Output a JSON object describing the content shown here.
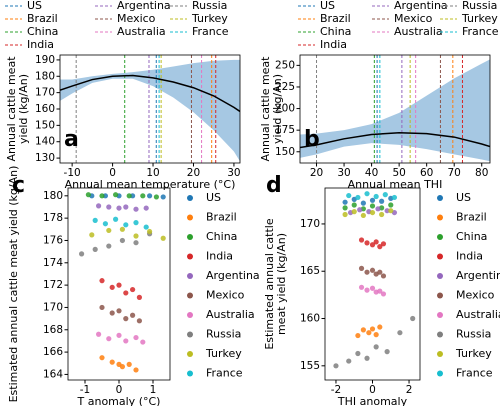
{
  "chart_data": [
    {
      "type": "line",
      "panel_label": "a",
      "xlabel": "Annual mean temperature (°C)",
      "ylabel": [
        "Annual cattle meat",
        "yield (kg/An)"
      ],
      "xlim": [
        -13,
        31.5
      ],
      "ylim": [
        127,
        193
      ],
      "xticks": [
        -10,
        0,
        10,
        20,
        30
      ],
      "yticks": [
        130,
        140,
        150,
        160,
        170,
        180,
        190
      ],
      "band_color": "#a6c8e3",
      "line_color": "#000000",
      "curve": {
        "x": [
          -13,
          -10,
          -5,
          0,
          5,
          10,
          15,
          20,
          25,
          30,
          31.5
        ],
        "values": [
          171.5,
          174,
          178,
          180,
          180.5,
          179,
          176.5,
          173,
          168,
          161,
          158.5
        ],
        "upper": [
          178,
          178,
          180,
          181.5,
          182.5,
          184,
          186,
          188,
          189.5,
          190,
          190
        ],
        "lower": [
          165,
          169.5,
          176,
          178.5,
          178.5,
          174,
          167,
          158,
          147,
          134,
          128
        ]
      },
      "markers": {
        "names": [
          "US",
          "Brazil",
          "China",
          "India",
          "Argentina",
          "Mexico",
          "Australia",
          "Russia",
          "Turkey",
          "France"
        ],
        "colors": [
          "#1f77b4",
          "#ff7f0e",
          "#2ca02c",
          "#d62728",
          "#9467bd",
          "#8c564b",
          "#e377c2",
          "#7f7f7f",
          "#bcbd22",
          "#17becf"
        ],
        "values": [
          10.8,
          24.5,
          3,
          25.5,
          9,
          19.5,
          22,
          -9,
          12,
          11.5
        ]
      }
    },
    {
      "type": "line",
      "panel_label": "b",
      "xlabel": "Annual mean THI",
      "ylabel": [
        "Annual cattle meat",
        "yield (kg/An)"
      ],
      "xlim": [
        14,
        83
      ],
      "ylim": [
        137,
        262
      ],
      "xticks": [
        20,
        30,
        40,
        50,
        60,
        70,
        80
      ],
      "yticks": [
        150,
        175,
        200,
        225,
        250
      ],
      "band_color": "#a6c8e3",
      "line_color": "#000000",
      "curve": {
        "x": [
          14,
          20,
          30,
          40,
          50,
          60,
          70,
          80,
          83
        ],
        "values": [
          155,
          158,
          165,
          170,
          172,
          171,
          167,
          159,
          156
        ],
        "upper": [
          170,
          171,
          175,
          182,
          195,
          215,
          235,
          252,
          257
        ],
        "lower": [
          143,
          147,
          156,
          160,
          158,
          153,
          147,
          141,
          139
        ]
      },
      "markers": {
        "names": [
          "US",
          "Brazil",
          "China",
          "India",
          "Argentina",
          "Mexico",
          "Australia",
          "Russia",
          "Turkey",
          "France"
        ],
        "colors": [
          "#1f77b4",
          "#ff7f0e",
          "#2ca02c",
          "#d62728",
          "#9467bd",
          "#8c564b",
          "#e377c2",
          "#7f7f7f",
          "#bcbd22",
          "#17becf"
        ],
        "values": [
          42,
          69.5,
          41,
          73,
          51,
          65,
          56,
          20,
          54,
          43
        ]
      }
    },
    {
      "type": "scatter",
      "panel_label": "c",
      "xlabel": "T anomaly (°C)",
      "ylabel": [
        "Estimated annual cattle meat yield (kg/An)"
      ],
      "xlim": [
        -1.5,
        1.5
      ],
      "ylim": [
        163.5,
        180.7
      ],
      "xticks": [
        -1,
        0,
        1
      ],
      "yticks": [
        164,
        166,
        168,
        170,
        172,
        174,
        176,
        178,
        180
      ],
      "series": [
        {
          "name": "US",
          "color": "#1f77b4",
          "x": [
            -0.8,
            -0.4,
            0,
            0.4,
            0.9,
            1.3
          ],
          "values": [
            180,
            180,
            180,
            180,
            180,
            179.9
          ]
        },
        {
          "name": "Brazil",
          "color": "#ff7f0e",
          "x": [
            -0.5,
            -0.2,
            0,
            0.1,
            0.3,
            0.5
          ],
          "values": [
            165.5,
            165.1,
            164.9,
            164.7,
            164.9,
            164.4
          ]
        },
        {
          "name": "China",
          "color": "#2ca02c",
          "x": [
            -0.9,
            -0.5,
            -0.1,
            0.3,
            0.7,
            1.1
          ],
          "values": [
            180.1,
            180,
            180.1,
            180,
            180,
            179.9
          ]
        },
        {
          "name": "India",
          "color": "#d62728",
          "x": [
            -0.5,
            -0.2,
            0,
            0.2,
            0.4,
            0.6
          ],
          "values": [
            172.4,
            171.8,
            172,
            171.3,
            171.6,
            170.9
          ]
        },
        {
          "name": "Argentina",
          "color": "#9467bd",
          "x": [
            -0.6,
            -0.3,
            0,
            0.2,
            0.5,
            0.8
          ],
          "values": [
            179.1,
            179,
            178.9,
            179,
            178.8,
            178.9
          ]
        },
        {
          "name": "Mexico",
          "color": "#8c564b",
          "x": [
            -0.5,
            -0.2,
            0,
            0.2,
            0.4,
            0.6
          ],
          "values": [
            170,
            169.5,
            169.7,
            169,
            169.3,
            168.8
          ]
        },
        {
          "name": "Australia",
          "color": "#e377c2",
          "x": [
            -0.6,
            -0.3,
            0,
            0.2,
            0.5,
            0.7
          ],
          "values": [
            167.6,
            167.2,
            167.5,
            167,
            167.3,
            166.9
          ]
        },
        {
          "name": "Russia",
          "color": "#7f7f7f",
          "x": [
            -1.1,
            -0.7,
            -0.3,
            0.1,
            0.5,
            0.9
          ],
          "values": [
            174.8,
            175.2,
            175.5,
            176,
            175.8,
            176.6
          ]
        },
        {
          "name": "Turkey",
          "color": "#bcbd22",
          "x": [
            -0.8,
            -0.3,
            0.1,
            0.5,
            0.9,
            1.3
          ],
          "values": [
            176.5,
            176.9,
            177,
            176.4,
            176.8,
            176.2
          ]
        },
        {
          "name": "France",
          "color": "#17becf",
          "x": [
            -0.7,
            -0.4,
            -0.1,
            0.2,
            0.5,
            0.8
          ],
          "values": [
            177.8,
            177.5,
            177.9,
            177.4,
            177.6,
            177.2
          ]
        }
      ]
    },
    {
      "type": "scatter",
      "panel_label": "d",
      "xlabel": "THI anomaly",
      "ylabel": [
        "Estimated annual cattle",
        "meat yield (kg/An)"
      ],
      "xlim": [
        -2.6,
        2.6
      ],
      "ylim": [
        153.5,
        173.8
      ],
      "xticks": [
        -2,
        0,
        2
      ],
      "yticks": [
        155,
        160,
        165,
        170
      ],
      "series": [
        {
          "name": "US",
          "color": "#1f77b4",
          "x": [
            -1.5,
            -1,
            -0.5,
            0,
            0.5,
            1
          ],
          "values": [
            172.3,
            172.6,
            172.2,
            172.5,
            172.4,
            172.7
          ]
        },
        {
          "name": "Brazil",
          "color": "#ff7f0e",
          "x": [
            -0.8,
            -0.5,
            -0.2,
            0,
            0.2,
            0.4
          ],
          "values": [
            158.2,
            158.8,
            158.5,
            158.9,
            158.3,
            159.1
          ]
        },
        {
          "name": "China",
          "color": "#2ca02c",
          "x": [
            -1.5,
            -1,
            -0.5,
            0,
            0.5,
            1
          ],
          "values": [
            171.7,
            172,
            171.6,
            171.9,
            171.7,
            172
          ]
        },
        {
          "name": "India",
          "color": "#d62728",
          "x": [
            -0.6,
            -0.3,
            0,
            0.2,
            0.4,
            0.6
          ],
          "values": [
            168.3,
            168,
            167.8,
            168.1,
            167.6,
            167.9
          ]
        },
        {
          "name": "Argentina",
          "color": "#9467bd",
          "x": [
            -1.2,
            -0.7,
            -0.2,
            0.3,
            0.8,
            1.2
          ],
          "values": [
            171.2,
            171.5,
            171.3,
            171.6,
            171.4,
            171.2
          ]
        },
        {
          "name": "Mexico",
          "color": "#8c564b",
          "x": [
            -0.6,
            -0.3,
            0,
            0.2,
            0.4,
            0.6
          ],
          "values": [
            165.3,
            164.9,
            165.1,
            164.7,
            164.9,
            164.5
          ]
        },
        {
          "name": "Australia",
          "color": "#e377c2",
          "x": [
            -0.6,
            -0.3,
            0,
            0.2,
            0.4,
            0.6
          ],
          "values": [
            163.3,
            163,
            163.2,
            162.8,
            162.9,
            162.6
          ]
        },
        {
          "name": "Russia",
          "color": "#7f7f7f",
          "x": [
            -2,
            -1.3,
            -0.8,
            -0.3,
            0.2,
            0.8,
            1.5,
            2.2
          ],
          "values": [
            155,
            155.5,
            156.3,
            155.8,
            157,
            156.5,
            158.5,
            160
          ]
        },
        {
          "name": "Turkey",
          "color": "#bcbd22",
          "x": [
            -1.5,
            -1,
            -0.5,
            0,
            0.5,
            1
          ],
          "values": [
            171,
            171.3,
            170.9,
            171.2,
            171,
            171.4
          ]
        },
        {
          "name": "France",
          "color": "#17becf",
          "x": [
            -1.3,
            -0.8,
            -0.3,
            0.2,
            0.7,
            1.2
          ],
          "values": [
            173,
            172.8,
            173.2,
            172.9,
            173.1,
            172.8
          ]
        }
      ]
    }
  ]
}
